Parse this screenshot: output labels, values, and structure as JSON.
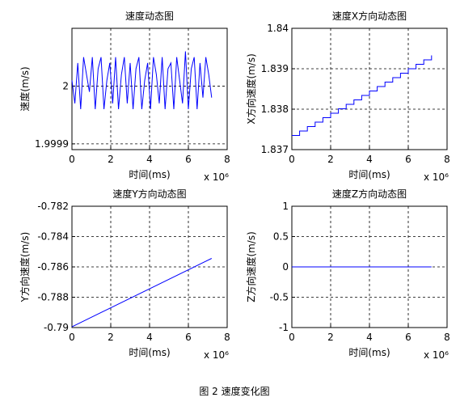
{
  "chart_data": [
    {
      "type": "line",
      "title": "速度动态图",
      "xlabel": "时间(ms)",
      "ylabel": "速度(m/s)",
      "x_multiplier": "x 10⁶",
      "xlim": [
        0,
        8
      ],
      "xticks": [
        0,
        2,
        4,
        6,
        8
      ],
      "ylim": [
        1.99989,
        2.0001
      ],
      "yticks": [
        1.9999,
        2
      ],
      "grid": true,
      "color": "#0000ff",
      "x": [
        0,
        0.15,
        0.3,
        0.45,
        0.6,
        0.75,
        0.9,
        1.05,
        1.2,
        1.35,
        1.5,
        1.65,
        1.8,
        1.95,
        2.1,
        2.25,
        2.4,
        2.55,
        2.7,
        2.85,
        3,
        3.15,
        3.3,
        3.45,
        3.6,
        3.75,
        3.9,
        4.05,
        4.2,
        4.35,
        4.5,
        4.65,
        4.8,
        4.95,
        5.1,
        5.25,
        5.4,
        5.55,
        5.7,
        5.85,
        6,
        6.15,
        6.3,
        6.45,
        6.6,
        6.75,
        6.9,
        7.05,
        7.2
      ],
      "values": [
        2.00001,
        1.99997,
        2.00004,
        1.99996,
        2.00005,
        2.00002,
        1.99999,
        2.00005,
        1.99996,
        2.00003,
        2.00005,
        1.99996,
        2.00001,
        2.00004,
        1.99997,
        2.00005,
        1.99996,
        2.00002,
        2.00005,
        1.99997,
        2.00004,
        1.99996,
        2.00003,
        2.00005,
        1.99996,
        2.00001,
        2.00004,
        1.99996,
        2.00005,
        2.00002,
        1.99997,
        2.00005,
        1.99996,
        2.00003,
        2.00004,
        1.99996,
        2.00005,
        2.00001,
        1.99997,
        2.00006,
        1.99996,
        2.00003,
        2.00005,
        1.99996,
        2.00004,
        1.99998,
        2.00005,
        2.00002,
        1.99998
      ]
    },
    {
      "type": "line",
      "title": "速度X方向动态图",
      "xlabel": "时间(ms)",
      "ylabel": "X方向速度(m/s)",
      "x_multiplier": "x 10⁶",
      "xlim": [
        0,
        8
      ],
      "xticks": [
        0,
        2,
        4,
        6,
        8
      ],
      "ylim": [
        1.837,
        1.84
      ],
      "yticks": [
        1.837,
        1.838,
        1.839,
        1.84
      ],
      "grid": true,
      "color": "#0000ff",
      "drawstyle": "steps",
      "x": [
        0,
        0.4,
        0.8,
        1.2,
        1.6,
        2,
        2.4,
        2.8,
        3.2,
        3.6,
        4,
        4.4,
        4.8,
        5.2,
        5.6,
        6,
        6.4,
        6.8,
        7.2
      ],
      "values": [
        1.83735,
        1.83746,
        1.83757,
        1.83768,
        1.83779,
        1.8379,
        1.83801,
        1.83812,
        1.83823,
        1.83834,
        1.83845,
        1.83856,
        1.83867,
        1.83878,
        1.83889,
        1.839,
        1.83911,
        1.83922,
        1.83933
      ]
    },
    {
      "type": "line",
      "title": "速度Y方向动态图",
      "xlabel": "时间(ms)",
      "ylabel": "Y方向速度(m/s)",
      "x_multiplier": "x 10⁶",
      "xlim": [
        0,
        8
      ],
      "xticks": [
        0,
        2,
        4,
        6,
        8
      ],
      "ylim": [
        -0.79,
        -0.782
      ],
      "yticks": [
        -0.79,
        -0.788,
        -0.786,
        -0.784,
        -0.782
      ],
      "grid": true,
      "color": "#0000ff",
      "x": [
        0,
        7.2
      ],
      "values": [
        -0.78995,
        -0.78544
      ]
    },
    {
      "type": "line",
      "title": "速度Z方向动态图",
      "xlabel": "时间(ms)",
      "ylabel": "Z方向速度(m/s)",
      "x_multiplier": "x 10⁶",
      "xlim": [
        0,
        8
      ],
      "xticks": [
        0,
        2,
        4,
        6,
        8
      ],
      "ylim": [
        -1,
        1
      ],
      "yticks": [
        -1,
        -0.5,
        0,
        0.5,
        1
      ],
      "grid": true,
      "color": "#0000ff",
      "x": [
        0,
        7.2
      ],
      "values": [
        0,
        0
      ]
    }
  ],
  "caption": "图 2 速度变化图"
}
